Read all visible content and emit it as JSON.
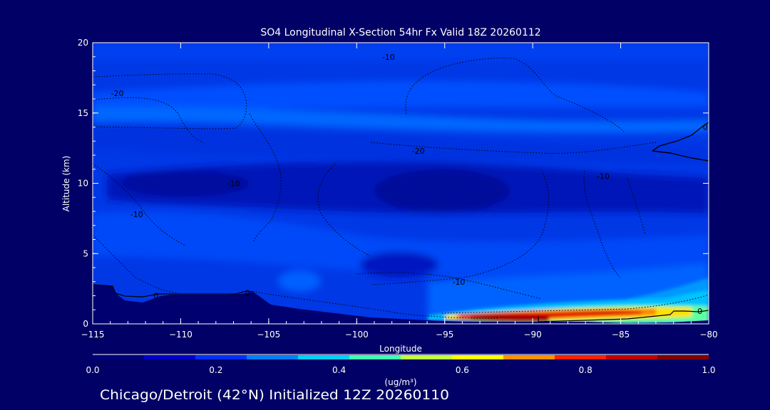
{
  "chart_data": {
    "type": "heatmap",
    "title": "SO4 Longitudinal X-Section 54hr  Fx Valid 18Z 20260112",
    "xlabel": "Longitude",
    "ylabel": "Altitude (km)",
    "xlim": [
      -115,
      -80
    ],
    "ylim": [
      0,
      20
    ],
    "x_ticks": [
      -115,
      -110,
      -105,
      -100,
      -95,
      -90,
      -85,
      -80
    ],
    "x_tick_labels": [
      "−115",
      "−110",
      "−105",
      "−100",
      "−95",
      "−90",
      "−85",
      "−80"
    ],
    "y_ticks": [
      0,
      5,
      10,
      15,
      20
    ],
    "y_tick_labels": [
      "0",
      "5",
      "10",
      "15",
      "20"
    ],
    "colorbar": {
      "min": 0.0,
      "max": 1.0,
      "tick_values": [
        0.0,
        0.2,
        0.4,
        0.6,
        0.8,
        1.0
      ],
      "tick_labels": [
        "0.0",
        "0.2",
        "0.4",
        "0.6",
        "0.8",
        "1.0"
      ],
      "unit_label": "(ug/m³)",
      "colors": [
        "#00007a",
        "#0000c8",
        "#0030ff",
        "#0080ff",
        "#00d0ff",
        "#40ffb0",
        "#c0ff40",
        "#ffff00",
        "#ff9000",
        "#ff2000",
        "#c00000",
        "#800000"
      ]
    },
    "contour_labels": [
      {
        "text": "-20",
        "lon": -113.6,
        "alt": 16.4
      },
      {
        "text": "-10",
        "lon": -98.2,
        "alt": 19.0
      },
      {
        "text": "-20",
        "lon": -96.5,
        "alt": 12.3
      },
      {
        "text": "-10",
        "lon": -107.0,
        "alt": 10.0
      },
      {
        "text": "-10",
        "lon": -112.5,
        "alt": 7.8
      },
      {
        "text": "-10",
        "lon": -86.0,
        "alt": 10.5
      },
      {
        "text": "-10",
        "lon": -94.2,
        "alt": 3.0
      },
      {
        "text": "0",
        "lon": -111.4,
        "alt": 2.0
      },
      {
        "text": "0",
        "lon": -106.2,
        "alt": 2.2
      },
      {
        "text": "0",
        "lon": -80.5,
        "alt": 0.9
      },
      {
        "text": "0",
        "lon": -80.2,
        "alt": 14.0
      }
    ]
  },
  "footer_text": "Chicago/Detroit (42°N) Initialized 12Z 20260110"
}
